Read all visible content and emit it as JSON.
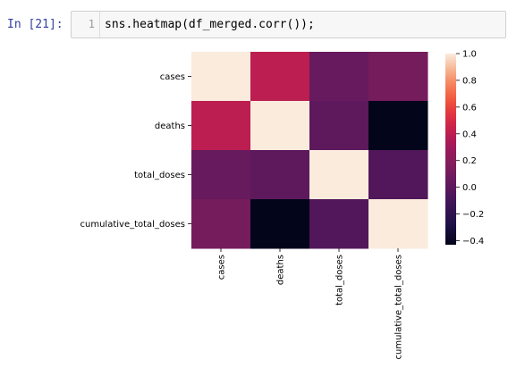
{
  "cell": {
    "prompt": "In [21]:",
    "line_number": "1",
    "code": "sns.heatmap(df_merged.corr());"
  },
  "chart_data": {
    "type": "heatmap",
    "rows": [
      "cases",
      "deaths",
      "total_doses",
      "cumulative_total_doses"
    ],
    "columns": [
      "cases",
      "deaths",
      "total_doses",
      "cumulative_total_doses"
    ],
    "values": [
      [
        1.0,
        0.4,
        0.05,
        0.12
      ],
      [
        0.4,
        1.0,
        0.01,
        -0.43
      ],
      [
        0.05,
        0.01,
        1.0,
        -0.04
      ],
      [
        0.12,
        -0.43,
        -0.04,
        1.0
      ]
    ],
    "colorbar": {
      "min": -0.43,
      "max": 1.0,
      "ticks": [
        1.0,
        0.8,
        0.6,
        0.4,
        0.2,
        0.0,
        -0.2,
        -0.4
      ],
      "tick_labels": [
        "1.0",
        "0.8",
        "0.6",
        "0.4",
        "0.2",
        "0.0",
        "−0.2",
        "−0.4"
      ]
    },
    "colormap": "rocket"
  }
}
